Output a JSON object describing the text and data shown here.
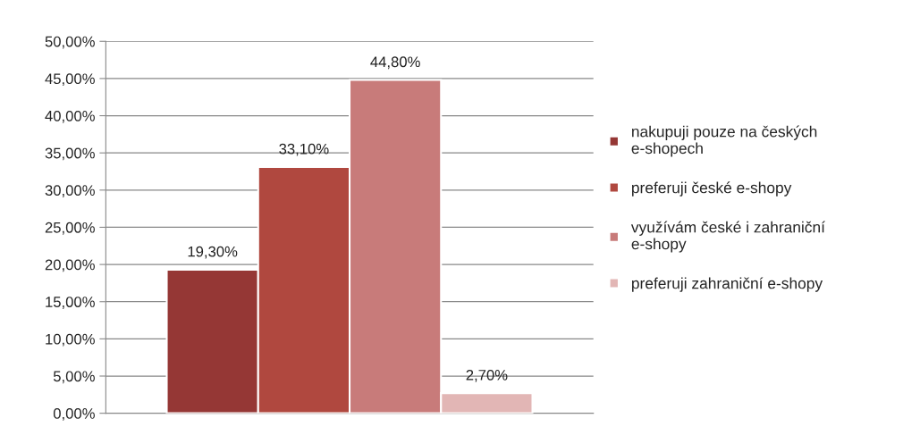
{
  "chart_data": {
    "type": "bar",
    "categories": [
      null
    ],
    "series": [
      {
        "name": "nakupuji pouze na českých e-shopech",
        "color": "#953735",
        "values": [
          19.3
        ],
        "value_labels": [
          "19,30%"
        ]
      },
      {
        "name": "preferuji české e-shopy",
        "color": "#b0483f",
        "values": [
          33.1
        ],
        "value_labels": [
          "33,10%"
        ]
      },
      {
        "name": "využívám české i zahraniční e-shopy",
        "color": "#c87b7a",
        "values": [
          44.8
        ],
        "value_labels": [
          "44,80%"
        ]
      },
      {
        "name": "preferuji zahraniční e-shopy",
        "color": "#e2b6b5",
        "values": [
          2.7
        ],
        "value_labels": [
          "2,70%"
        ]
      }
    ],
    "ylim": [
      0,
      50
    ],
    "yticks": [
      {
        "value": 0,
        "label": "0,00%"
      },
      {
        "value": 5,
        "label": "5,00%"
      },
      {
        "value": 10,
        "label": "10,00%"
      },
      {
        "value": 15,
        "label": "15,00%"
      },
      {
        "value": 20,
        "label": "20,00%"
      },
      {
        "value": 25,
        "label": "25,00%"
      },
      {
        "value": 30,
        "label": "30,00%"
      },
      {
        "value": 35,
        "label": "35,00%"
      },
      {
        "value": 40,
        "label": "40,00%"
      },
      {
        "value": 45,
        "label": "45,00%"
      },
      {
        "value": 50,
        "label": "50,00%"
      }
    ],
    "grid": "y",
    "legend": "right"
  }
}
